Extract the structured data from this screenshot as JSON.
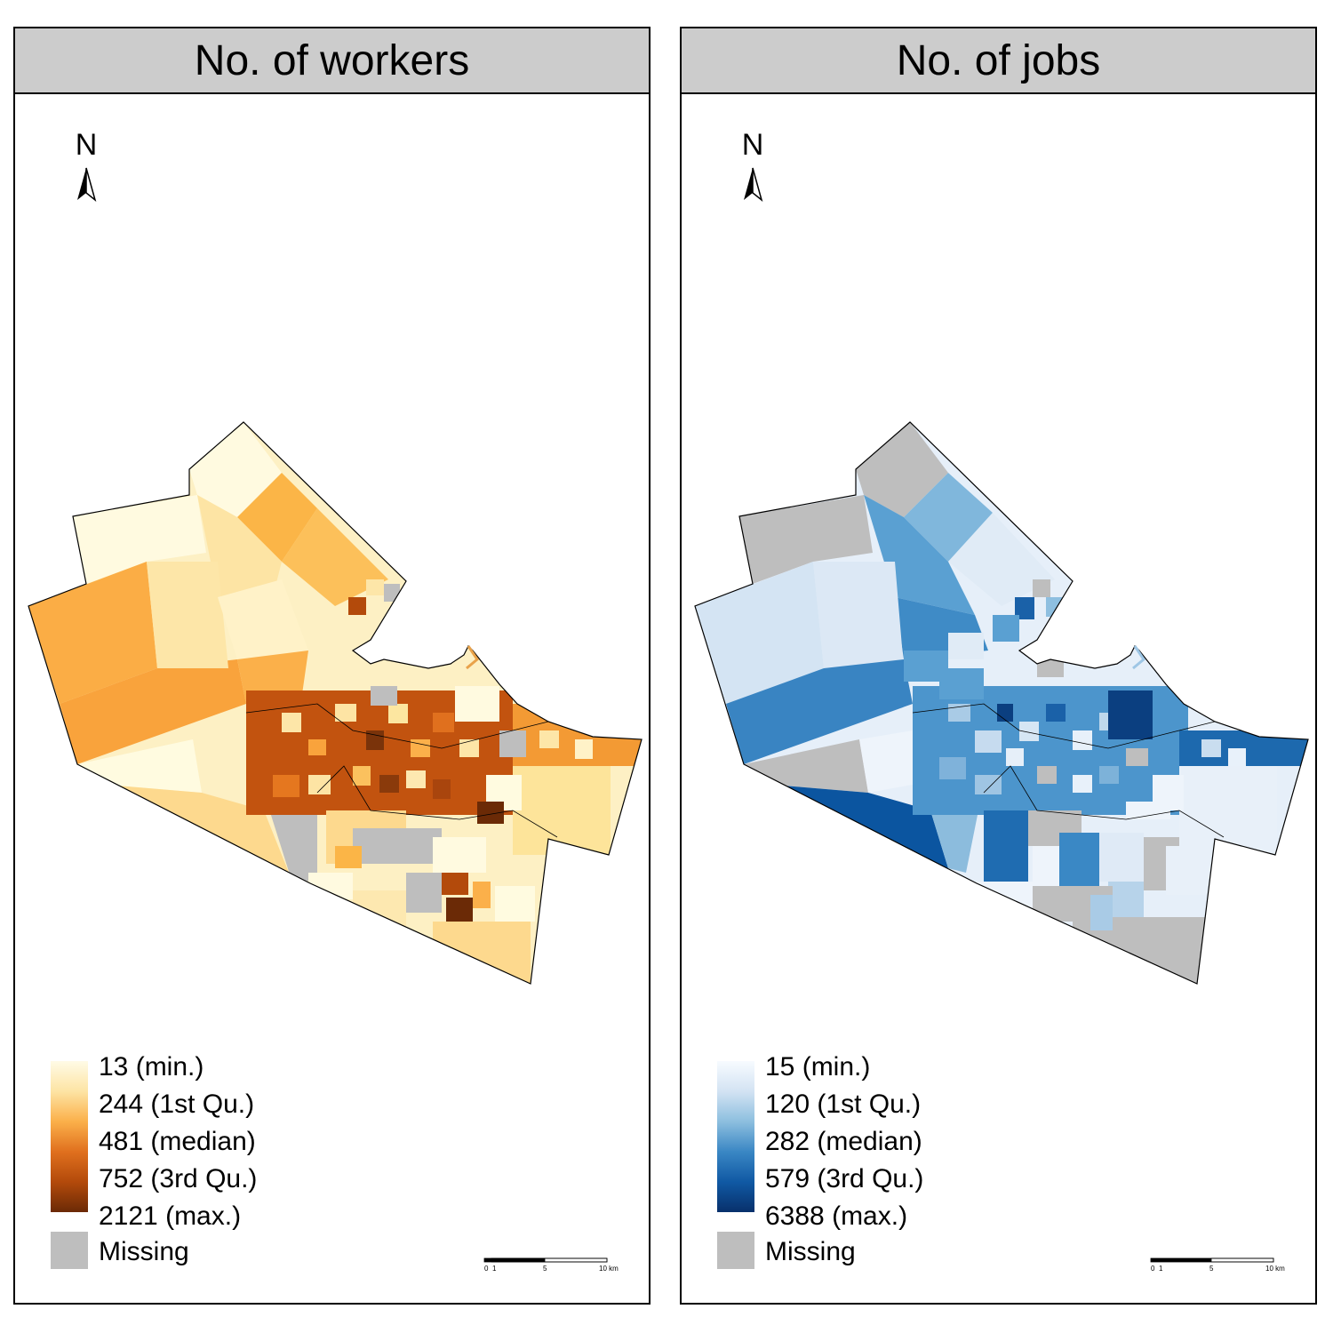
{
  "panels": [
    {
      "title": "No. of workers",
      "north_label": "N",
      "legend": {
        "labels": [
          "13 (min.)",
          "244 (1st Qu.)",
          "481 (median)",
          "752 (3rd Qu.)",
          "2121 (max.)"
        ],
        "missing_label": "Missing",
        "ramp_colors": [
          "#fffbe6",
          "#fde4a4",
          "#fbb04a",
          "#e0701e",
          "#b34a0b",
          "#6b2a06"
        ],
        "missing_color": "#bebebe"
      },
      "scale": {
        "ticks": [
          "0",
          "1",
          "5",
          "10 km"
        ]
      }
    },
    {
      "title": "No. of jobs",
      "north_label": "N",
      "legend": {
        "labels": [
          "15 (min.)",
          "120 (1st Qu.)",
          "282 (median)",
          "579 (3rd Qu.)",
          "6388 (max.)"
        ],
        "missing_label": "Missing",
        "ramp_colors": [
          "#f7fbff",
          "#d3e3f3",
          "#8dbfdf",
          "#3a87c4",
          "#1059a4",
          "#08306b"
        ],
        "missing_color": "#bebebe"
      },
      "scale": {
        "ticks": [
          "0",
          "1",
          "5",
          "10 km"
        ]
      }
    }
  ]
}
